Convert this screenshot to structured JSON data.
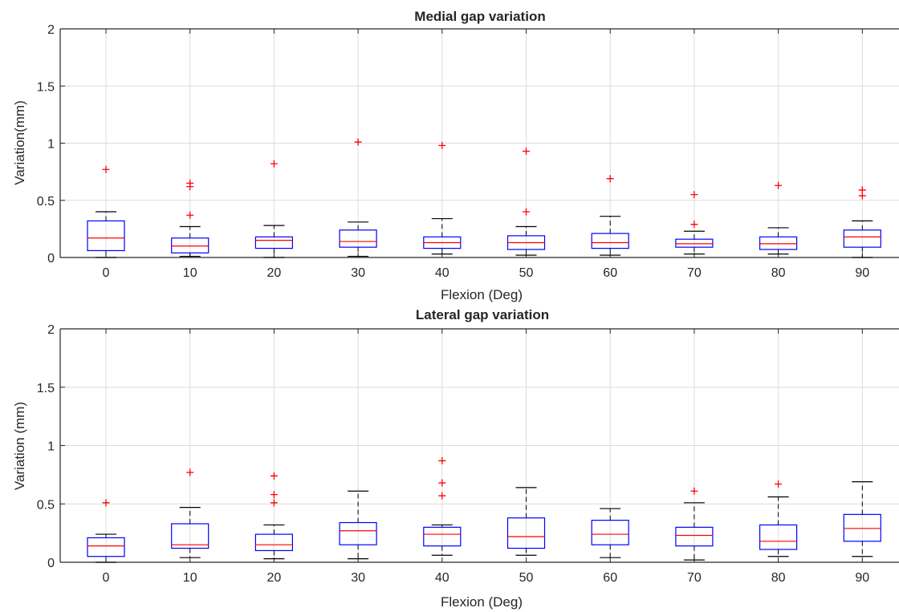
{
  "chart_data": [
    {
      "type": "box",
      "title": "Medial gap variation",
      "xlabel": "Flexion (Deg)",
      "ylabel": "Variation(mm)",
      "ylim": [
        0,
        2
      ],
      "yticks": [
        "0",
        "0.5",
        "1",
        "1.5",
        "2"
      ],
      "categories": [
        "0",
        "10",
        "20",
        "30",
        "40",
        "50",
        "60",
        "70",
        "80",
        "90"
      ],
      "grid": true,
      "colors": {
        "box": "#0000ff",
        "median": "#ff0000",
        "whisker": "#000000",
        "outlier": "#ff0000"
      },
      "boxes": [
        {
          "q1": 0.06,
          "median": 0.17,
          "q3": 0.32,
          "whisker_low": 0.0,
          "whisker_high": 0.4,
          "outliers": [
            0.77
          ]
        },
        {
          "q1": 0.04,
          "median": 0.1,
          "q3": 0.17,
          "whisker_low": 0.01,
          "whisker_high": 0.27,
          "outliers": [
            0.37,
            0.62,
            0.65
          ]
        },
        {
          "q1": 0.08,
          "median": 0.15,
          "q3": 0.18,
          "whisker_low": 0.0,
          "whisker_high": 0.28,
          "outliers": [
            0.82
          ]
        },
        {
          "q1": 0.09,
          "median": 0.14,
          "q3": 0.24,
          "whisker_low": 0.01,
          "whisker_high": 0.31,
          "outliers": [
            1.01
          ]
        },
        {
          "q1": 0.08,
          "median": 0.13,
          "q3": 0.18,
          "whisker_low": 0.03,
          "whisker_high": 0.34,
          "outliers": [
            0.98
          ]
        },
        {
          "q1": 0.07,
          "median": 0.13,
          "q3": 0.19,
          "whisker_low": 0.02,
          "whisker_high": 0.27,
          "outliers": [
            0.4,
            0.93
          ]
        },
        {
          "q1": 0.08,
          "median": 0.13,
          "q3": 0.21,
          "whisker_low": 0.02,
          "whisker_high": 0.36,
          "outliers": [
            0.69
          ]
        },
        {
          "q1": 0.09,
          "median": 0.12,
          "q3": 0.16,
          "whisker_low": 0.03,
          "whisker_high": 0.23,
          "outliers": [
            0.29,
            0.55
          ]
        },
        {
          "q1": 0.07,
          "median": 0.12,
          "q3": 0.18,
          "whisker_low": 0.03,
          "whisker_high": 0.26,
          "outliers": [
            0.63
          ]
        },
        {
          "q1": 0.09,
          "median": 0.18,
          "q3": 0.24,
          "whisker_low": 0.0,
          "whisker_high": 0.32,
          "outliers": [
            0.54,
            0.59
          ]
        }
      ]
    },
    {
      "type": "box",
      "title": "Lateral gap variation",
      "xlabel": "Flexion (Deg)",
      "ylabel": "Variation (mm)",
      "ylim": [
        0,
        2
      ],
      "yticks": [
        "0",
        "0.5",
        "1",
        "1.5",
        "2"
      ],
      "categories": [
        "0",
        "10",
        "20",
        "30",
        "40",
        "50",
        "60",
        "70",
        "80",
        "90"
      ],
      "grid": true,
      "colors": {
        "box": "#0000ff",
        "median": "#ff0000",
        "whisker": "#000000",
        "outlier": "#ff0000"
      },
      "boxes": [
        {
          "q1": 0.05,
          "median": 0.14,
          "q3": 0.21,
          "whisker_low": 0.0,
          "whisker_high": 0.24,
          "outliers": [
            0.51
          ]
        },
        {
          "q1": 0.12,
          "median": 0.15,
          "q3": 0.33,
          "whisker_low": 0.04,
          "whisker_high": 0.47,
          "outliers": [
            0.77
          ]
        },
        {
          "q1": 0.1,
          "median": 0.15,
          "q3": 0.24,
          "whisker_low": 0.03,
          "whisker_high": 0.32,
          "outliers": [
            0.51,
            0.58,
            0.74
          ]
        },
        {
          "q1": 0.15,
          "median": 0.27,
          "q3": 0.34,
          "whisker_low": 0.03,
          "whisker_high": 0.61,
          "outliers": []
        },
        {
          "q1": 0.14,
          "median": 0.24,
          "q3": 0.3,
          "whisker_low": 0.06,
          "whisker_high": 0.32,
          "outliers": [
            0.57,
            0.68,
            0.87
          ]
        },
        {
          "q1": 0.12,
          "median": 0.22,
          "q3": 0.38,
          "whisker_low": 0.06,
          "whisker_high": 0.64,
          "outliers": []
        },
        {
          "q1": 0.15,
          "median": 0.24,
          "q3": 0.36,
          "whisker_low": 0.04,
          "whisker_high": 0.46,
          "outliers": []
        },
        {
          "q1": 0.14,
          "median": 0.23,
          "q3": 0.3,
          "whisker_low": 0.02,
          "whisker_high": 0.51,
          "outliers": [
            0.61
          ]
        },
        {
          "q1": 0.11,
          "median": 0.18,
          "q3": 0.32,
          "whisker_low": 0.05,
          "whisker_high": 0.56,
          "outliers": [
            0.67
          ]
        },
        {
          "q1": 0.18,
          "median": 0.29,
          "q3": 0.41,
          "whisker_low": 0.05,
          "whisker_high": 0.69,
          "outliers": []
        }
      ]
    }
  ]
}
